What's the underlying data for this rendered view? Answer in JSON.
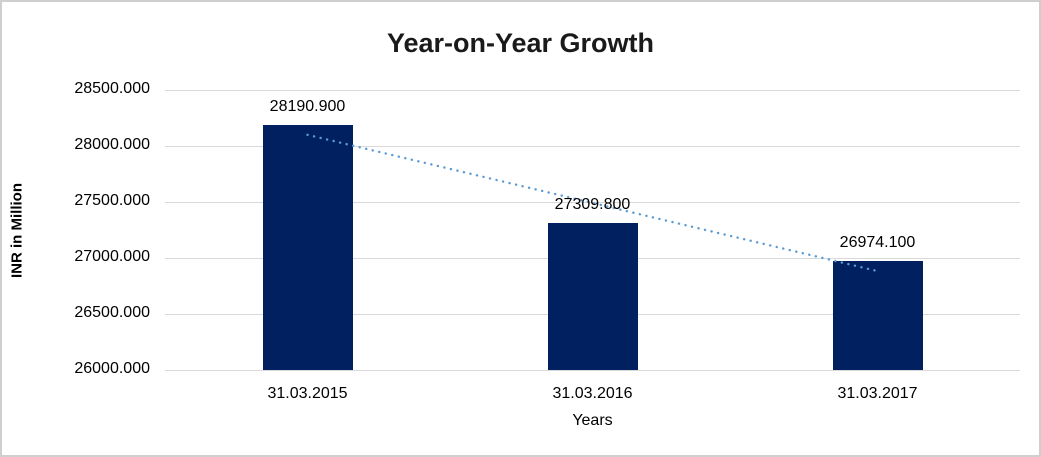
{
  "chart": {
    "title": "Year-on-Year Growth",
    "x_axis_title": "Years",
    "y_axis_title": "INR in Million"
  },
  "chart_data": {
    "type": "bar",
    "title": "Year-on-Year Growth",
    "xlabel": "Years",
    "ylabel": "INR in Million",
    "categories": [
      "31.03.2015",
      "31.03.2016",
      "31.03.2017"
    ],
    "values": [
      28190.9,
      27309.8,
      26974.1
    ],
    "data_labels": [
      "28190.900",
      "27309.800",
      "26974.100"
    ],
    "ylim": [
      26000,
      28500
    ],
    "ytick_step": 500,
    "ytick_labels": [
      "26000.000",
      "26500.000",
      "27000.000",
      "27500.000",
      "28000.000",
      "28500.000"
    ],
    "grid": true,
    "legend": "none",
    "trendline": {
      "type": "linear",
      "style": "dotted",
      "color": "#5B9BD5"
    },
    "colors": {
      "bar": "#002060",
      "gridline": "#D9D9D9",
      "frame_border": "#CFCFCF",
      "title_text": "#1A1A1A",
      "axis_text": "#000000",
      "background": "#FFFFFF"
    }
  }
}
